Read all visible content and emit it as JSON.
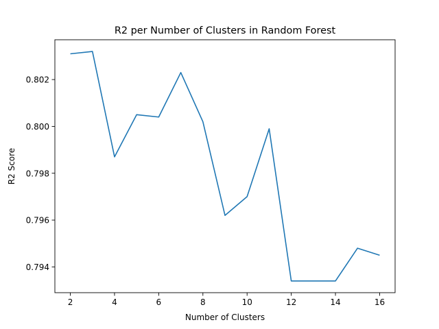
{
  "chart_data": {
    "type": "line",
    "title": "R2 per Number of Clusters in Random Forest",
    "xlabel": "Number of Clusters",
    "ylabel": "R2 Score",
    "xlim": [
      1.3,
      16.7
    ],
    "ylim": [
      0.7929,
      0.8037
    ],
    "xticks": [
      2,
      4,
      6,
      8,
      10,
      12,
      14,
      16
    ],
    "xtick_labels": [
      "2",
      "4",
      "6",
      "8",
      "10",
      "12",
      "14",
      "16"
    ],
    "yticks": [
      0.794,
      0.796,
      0.798,
      0.8,
      0.802
    ],
    "ytick_labels": [
      "0.794",
      "0.796",
      "0.798",
      "0.800",
      "0.802"
    ],
    "grid": false,
    "series": [
      {
        "color": "#1f77b4",
        "x": [
          2,
          3,
          4,
          5,
          6,
          7,
          8,
          9,
          10,
          11,
          12,
          13,
          14,
          15,
          16
        ],
        "y": [
          0.8031,
          0.8032,
          0.7987,
          0.8005,
          0.8004,
          0.8023,
          0.8002,
          0.7962,
          0.797,
          0.7999,
          0.7934,
          0.7934,
          0.7934,
          0.7948,
          0.7945
        ]
      }
    ]
  }
}
